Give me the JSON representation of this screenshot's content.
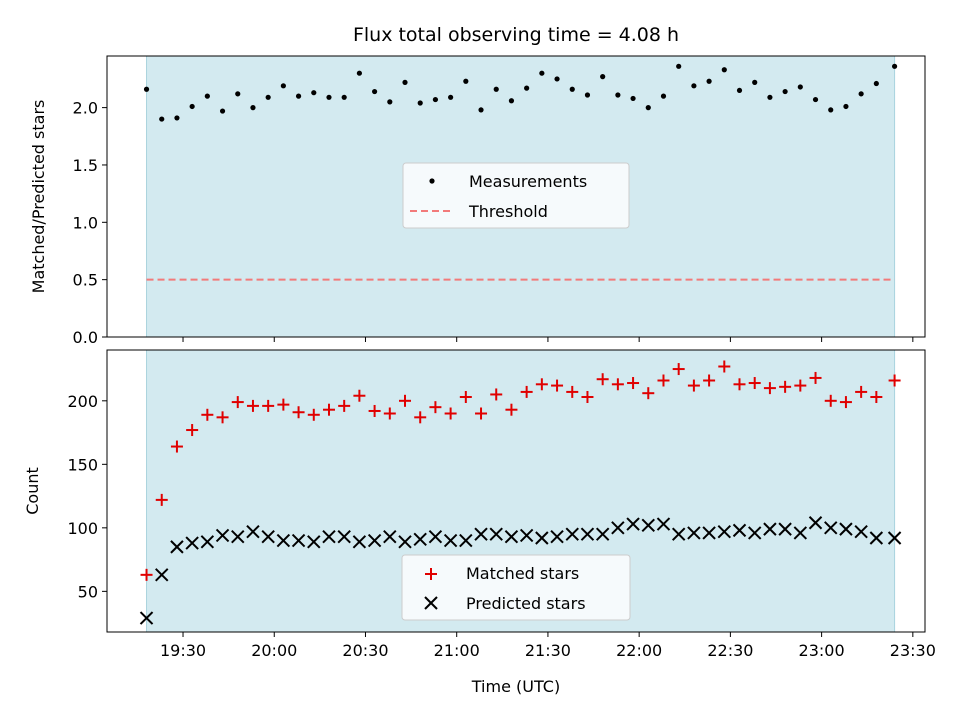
{
  "chart_data": [
    {
      "type": "scatter",
      "title": "Flux total observing time = 4.08 h",
      "xlabel": "",
      "ylabel": "Matched/Predicted stars",
      "ylim": [
        0.0,
        2.45
      ],
      "yticks": [
        "0.0",
        "0.5",
        "1.0",
        "1.5",
        "2.0"
      ],
      "shaded_interval": [
        "19:18",
        "23:24"
      ],
      "shade_color": "#d3eaf0",
      "legend_position": "center",
      "series": [
        {
          "name": "Measurements",
          "marker": "dot",
          "color": "#000000",
          "x": [
            "19:18",
            "19:23",
            "19:28",
            "19:33",
            "19:38",
            "19:43",
            "19:48",
            "19:53",
            "19:58",
            "20:03",
            "20:08",
            "20:13",
            "20:18",
            "20:23",
            "20:28",
            "20:33",
            "20:38",
            "20:43",
            "20:48",
            "20:53",
            "20:58",
            "21:03",
            "21:08",
            "21:13",
            "21:18",
            "21:23",
            "21:28",
            "21:33",
            "21:38",
            "21:43",
            "21:48",
            "21:53",
            "21:58",
            "22:03",
            "22:08",
            "22:13",
            "22:18",
            "22:23",
            "22:28",
            "22:33",
            "22:38",
            "22:43",
            "22:48",
            "22:53",
            "22:58",
            "23:03",
            "23:08",
            "23:13",
            "23:18",
            "23:24"
          ],
          "y": [
            2.16,
            1.9,
            1.91,
            2.01,
            2.1,
            1.97,
            2.12,
            2.0,
            2.09,
            2.19,
            2.1,
            2.13,
            2.09,
            2.09,
            2.3,
            2.14,
            2.05,
            2.22,
            2.04,
            2.07,
            2.09,
            2.23,
            1.98,
            2.16,
            2.06,
            2.17,
            2.3,
            2.25,
            2.16,
            2.11,
            2.27,
            2.11,
            2.08,
            2.0,
            2.1,
            2.36,
            2.19,
            2.23,
            2.33,
            2.15,
            2.22,
            2.09,
            2.14,
            2.18,
            2.07,
            1.98,
            2.01,
            2.12,
            2.21,
            2.36
          ]
        },
        {
          "name": "Threshold",
          "style": "dashed-line",
          "color": "#f27a7a",
          "x": [
            "19:18",
            "23:24"
          ],
          "y": [
            0.5,
            0.5
          ]
        }
      ]
    },
    {
      "type": "scatter",
      "title": "",
      "xlabel": "Time (UTC)",
      "ylabel": "Count",
      "ylim": [
        18,
        240
      ],
      "yticks": [
        "50",
        "100",
        "150",
        "200"
      ],
      "xticks": [
        "19:30",
        "20:00",
        "20:30",
        "21:00",
        "21:30",
        "22:00",
        "22:30",
        "23:00",
        "23:30"
      ],
      "shaded_interval": [
        "19:18",
        "23:24"
      ],
      "shade_color": "#d3eaf0",
      "legend_position": "lower center",
      "series": [
        {
          "name": "Matched stars",
          "marker": "plus",
          "color": "#e00000",
          "x": [
            "19:18",
            "19:23",
            "19:28",
            "19:33",
            "19:38",
            "19:43",
            "19:48",
            "19:53",
            "19:58",
            "20:03",
            "20:08",
            "20:13",
            "20:18",
            "20:23",
            "20:28",
            "20:33",
            "20:38",
            "20:43",
            "20:48",
            "20:53",
            "20:58",
            "21:03",
            "21:08",
            "21:13",
            "21:18",
            "21:23",
            "21:28",
            "21:33",
            "21:38",
            "21:43",
            "21:48",
            "21:53",
            "21:58",
            "22:03",
            "22:08",
            "22:13",
            "22:18",
            "22:23",
            "22:28",
            "22:33",
            "22:38",
            "22:43",
            "22:48",
            "22:53",
            "22:58",
            "23:03",
            "23:08",
            "23:13",
            "23:18",
            "23:24"
          ],
          "y": [
            63,
            122,
            164,
            177,
            189,
            187,
            199,
            196,
            196,
            197,
            191,
            189,
            193,
            196,
            204,
            192,
            190,
            200,
            187,
            195,
            190,
            203,
            190,
            205,
            193,
            207,
            213,
            212,
            207,
            203,
            217,
            213,
            214,
            206,
            216,
            225,
            212,
            216,
            227,
            213,
            214,
            210,
            211,
            212,
            218,
            200,
            199,
            207,
            203,
            216
          ]
        },
        {
          "name": "Predicted stars",
          "marker": "x",
          "color": "#000000",
          "x": [
            "19:18",
            "19:23",
            "19:28",
            "19:33",
            "19:38",
            "19:43",
            "19:48",
            "19:53",
            "19:58",
            "20:03",
            "20:08",
            "20:13",
            "20:18",
            "20:23",
            "20:28",
            "20:33",
            "20:38",
            "20:43",
            "20:48",
            "20:53",
            "20:58",
            "21:03",
            "21:08",
            "21:13",
            "21:18",
            "21:23",
            "21:28",
            "21:33",
            "21:38",
            "21:43",
            "21:48",
            "21:53",
            "21:58",
            "22:03",
            "22:08",
            "22:13",
            "22:18",
            "22:23",
            "22:28",
            "22:33",
            "22:38",
            "22:43",
            "22:48",
            "22:53",
            "22:58",
            "23:03",
            "23:08",
            "23:13",
            "23:18",
            "23:24"
          ],
          "y": [
            29,
            63,
            85,
            88,
            89,
            94,
            93,
            97,
            93,
            90,
            90,
            89,
            93,
            93,
            89,
            90,
            93,
            89,
            91,
            93,
            90,
            90,
            95,
            95,
            93,
            94,
            92,
            93,
            95,
            95,
            95,
            100,
            103,
            102,
            103,
            95,
            96,
            96,
            97,
            98,
            96,
            99,
            99,
            96,
            104,
            100,
            99,
            97,
            92,
            92
          ]
        }
      ]
    }
  ]
}
